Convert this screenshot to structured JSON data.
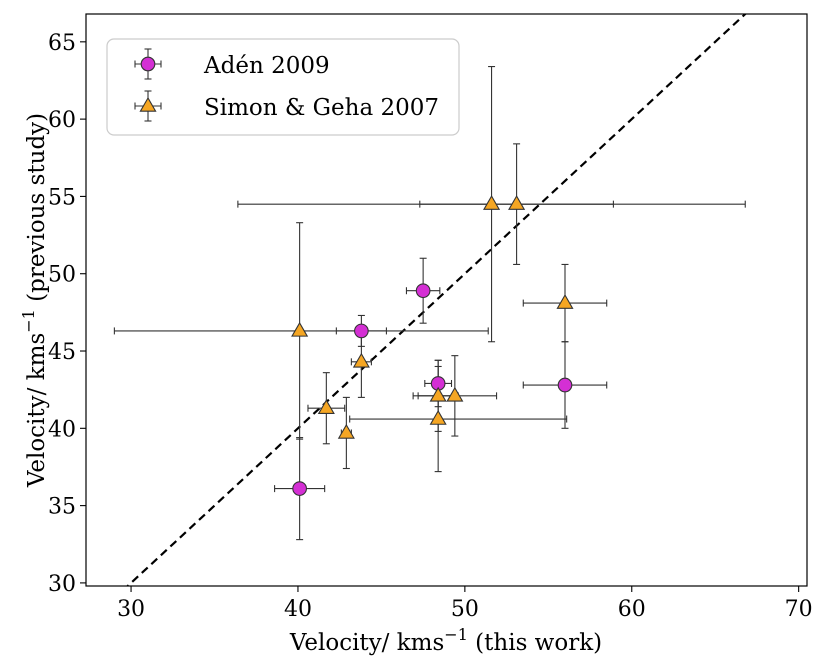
{
  "chart_data": {
    "type": "scatter",
    "title": "",
    "xlabel": "Velocity/ kms",
    "xlabel_sup": "−1",
    "xlabel_suffix": " (this work)",
    "ylabel": "Velocity/ kms",
    "ylabel_sup": "−1",
    "ylabel_suffix": " (previous study)",
    "xlim": [
      27.3,
      70.5
    ],
    "ylim": [
      29.8,
      66.8
    ],
    "xticks": [
      30,
      40,
      50,
      60,
      70
    ],
    "yticks": [
      30,
      35,
      40,
      45,
      50,
      55,
      60,
      65
    ],
    "grid": false,
    "legend_position": "top-left",
    "reference_line": {
      "style": "dashed",
      "color": "#000000",
      "description": "one-to-one line",
      "x": [
        29.5,
        67.5
      ],
      "y": [
        29.5,
        67.5
      ]
    },
    "series": [
      {
        "name": "Adén 2009",
        "marker": "circle",
        "color": "#d42fd4",
        "points": [
          {
            "x": 40.1,
            "y": 36.1,
            "xerr": 1.5,
            "yerr": 3.3
          },
          {
            "x": 43.8,
            "y": 46.3,
            "xerr": 1.5,
            "yerr": 1.0
          },
          {
            "x": 47.5,
            "y": 48.9,
            "xerr": 1.0,
            "yerr": 2.1
          },
          {
            "x": 48.4,
            "y": 42.9,
            "xerr": 0.8,
            "yerr": 1.5
          },
          {
            "x": 56.0,
            "y": 42.8,
            "xerr": 2.5,
            "yerr": 2.8
          }
        ]
      },
      {
        "name": "Simon & Geha 2007",
        "marker": "triangle",
        "color": "#f5a623",
        "points": [
          {
            "x": 40.1,
            "y": 46.3,
            "xerr_low": 11.1,
            "xerr_high": 11.3,
            "yerr": 7.0
          },
          {
            "x": 41.7,
            "y": 41.3,
            "xerr": 1.1,
            "yerr": 2.3
          },
          {
            "x": 42.9,
            "y": 39.7,
            "xerr": 0.3,
            "yerr": 2.3
          },
          {
            "x": 43.8,
            "y": 44.3,
            "xerr": 0.6,
            "yerr": 2.3
          },
          {
            "x": 48.4,
            "y": 42.1,
            "xerr": 1.2,
            "yerr": 2.3
          },
          {
            "x": 49.4,
            "y": 42.1,
            "xerr": 2.5,
            "yerr": 2.6
          },
          {
            "x": 48.4,
            "y": 40.6,
            "xerr_low": 5.3,
            "xerr_high": 7.7,
            "yerr": 3.4
          },
          {
            "x": 51.6,
            "y": 54.5,
            "xerr": 15.2,
            "yerr": 8.9
          },
          {
            "x": 53.1,
            "y": 54.5,
            "xerr": 5.8,
            "yerr": 3.9
          },
          {
            "x": 56.0,
            "y": 48.1,
            "xerr": 2.5,
            "yerr": 2.5
          }
        ]
      }
    ]
  }
}
